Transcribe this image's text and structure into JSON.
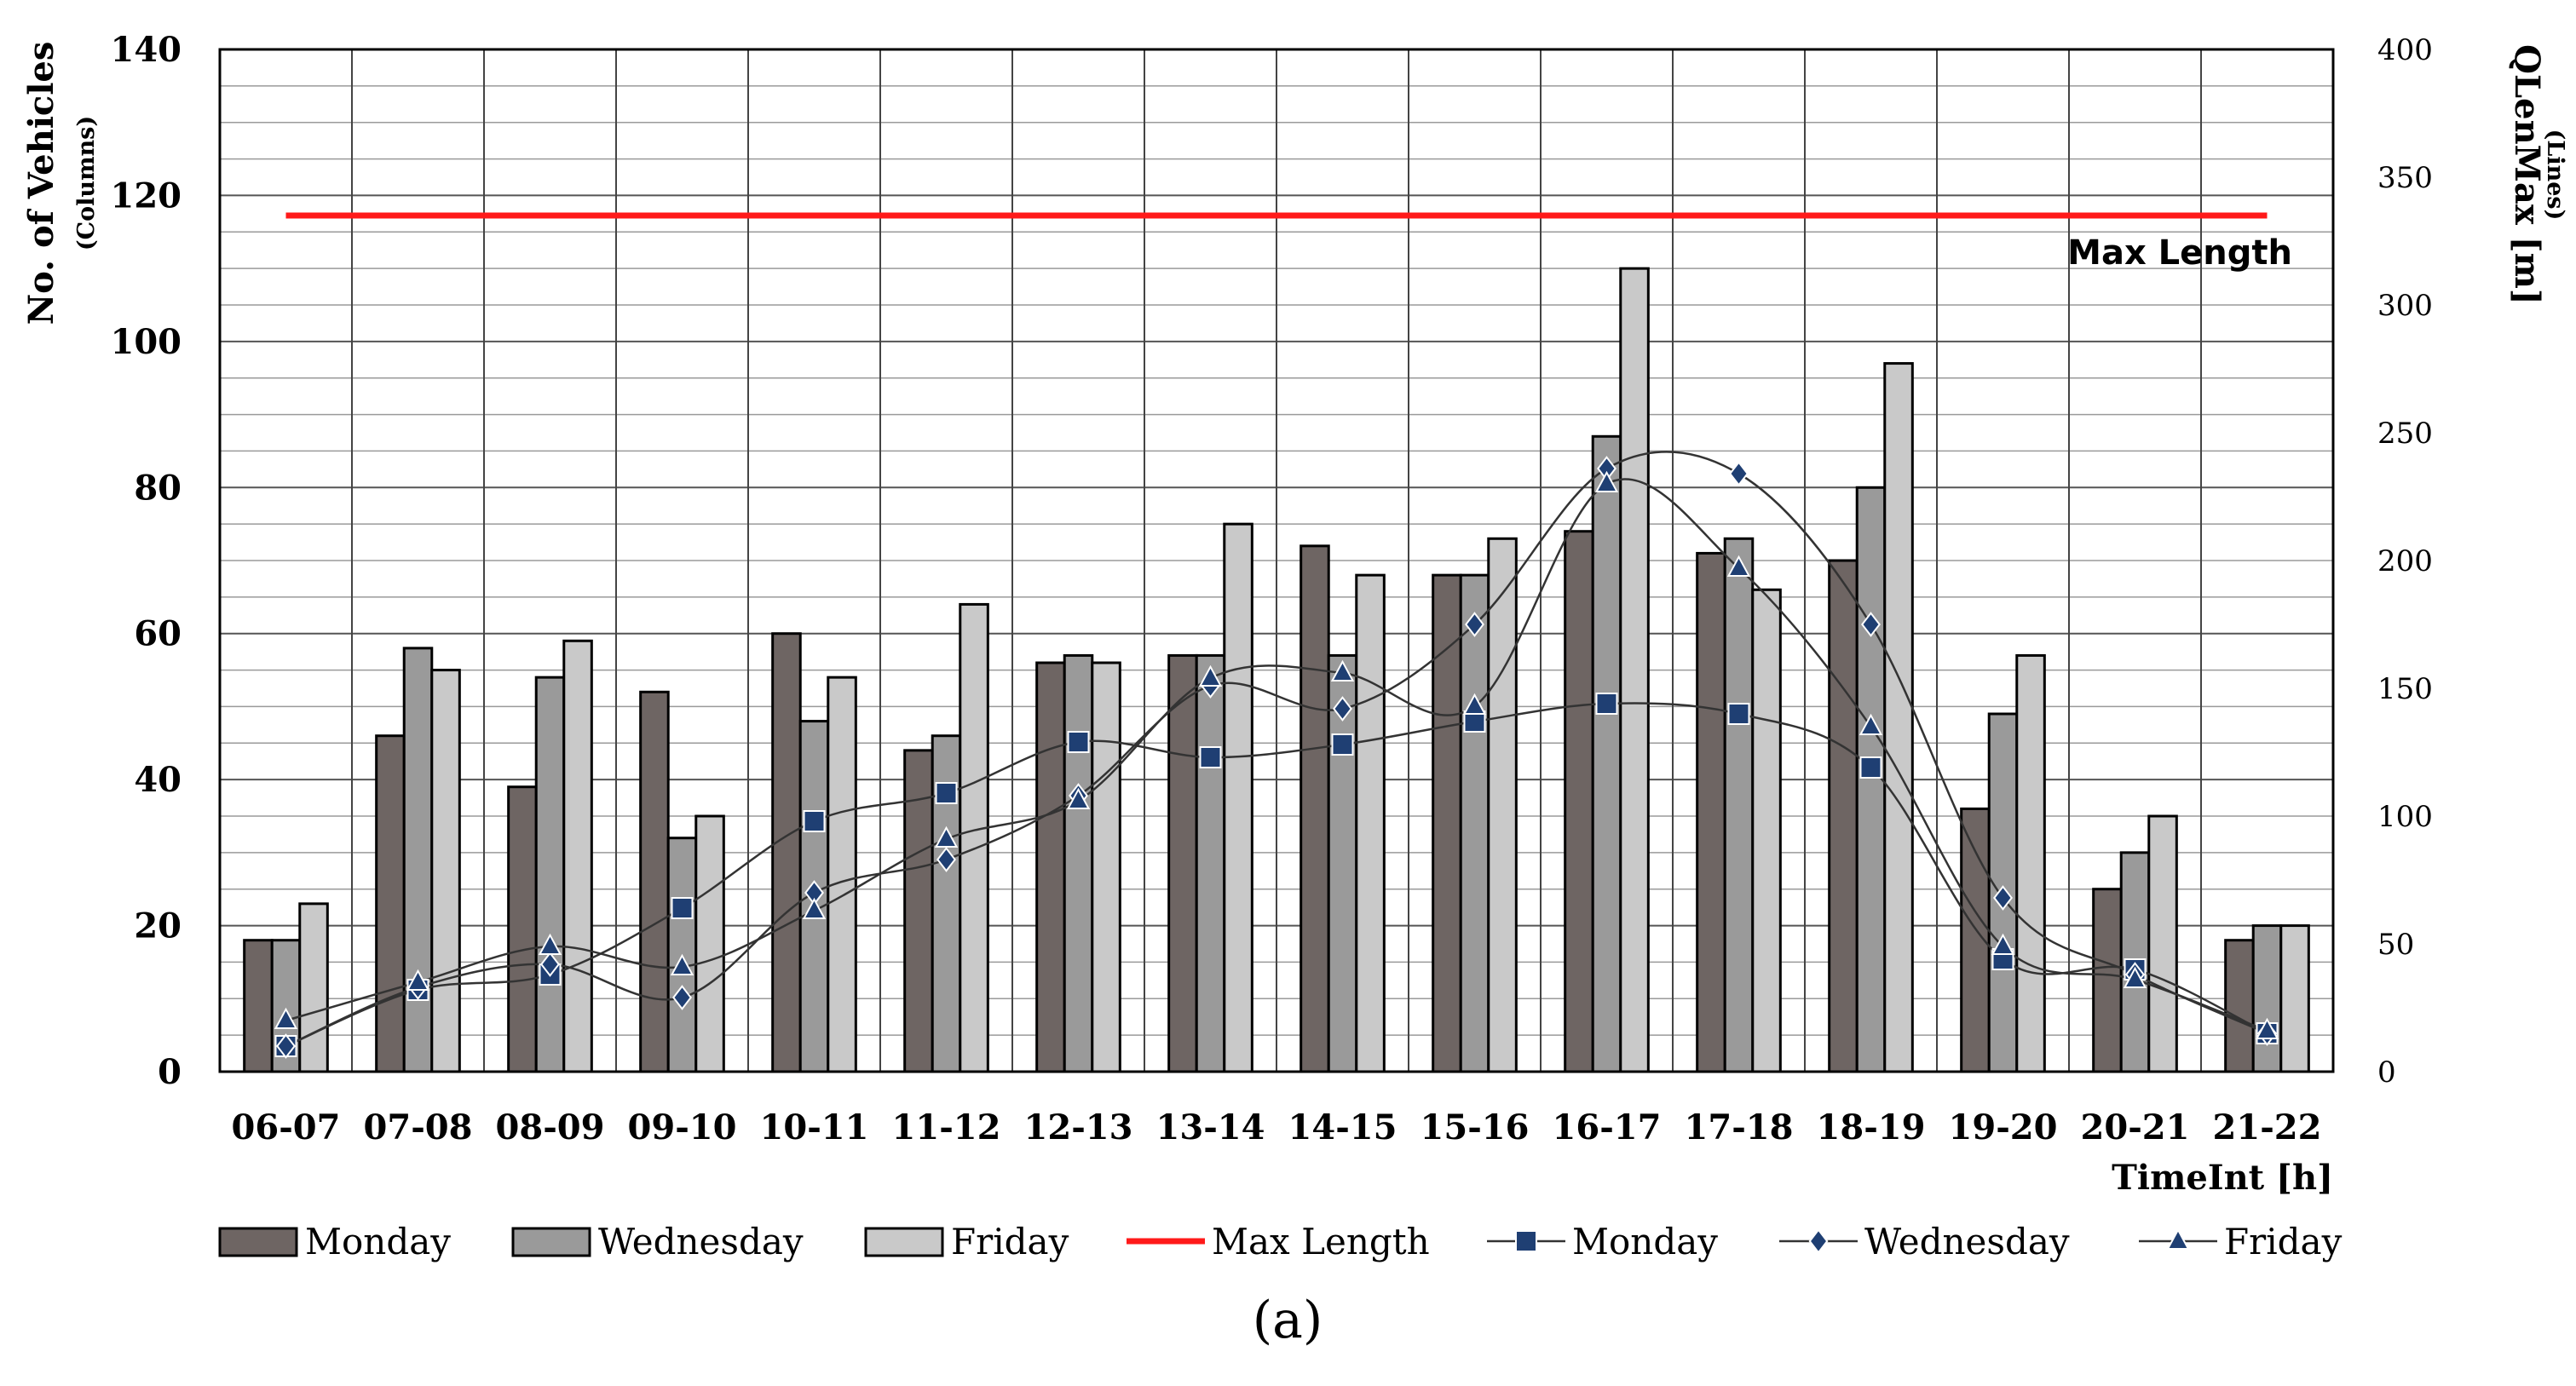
{
  "panel_label": "(a)",
  "chart_data": {
    "type": "bar",
    "x_label": "TimeInt [h]",
    "categories": [
      "06-07",
      "07-08",
      "08-09",
      "09-10",
      "10-11",
      "11-12",
      "12-13",
      "13-14",
      "14-15",
      "15-16",
      "16-17",
      "17-18",
      "18-19",
      "19-20",
      "20-21",
      "21-22"
    ],
    "left_axis": {
      "label": "No. of Vehicles",
      "sublabel": "(Columns)",
      "ylim": [
        0,
        140
      ],
      "ticks": [
        0,
        20,
        40,
        60,
        80,
        100,
        120,
        140
      ]
    },
    "right_axis": {
      "label": "QLenMax [m]",
      "sublabel": "(Lines)",
      "ylim": [
        0,
        400
      ],
      "ticks": [
        0,
        50,
        100,
        150,
        200,
        250,
        300,
        350,
        400
      ]
    },
    "bar_series": [
      {
        "name": "Monday",
        "color": "#6e6563",
        "values": [
          18,
          46,
          39,
          52,
          60,
          44,
          56,
          57,
          72,
          68,
          74,
          71,
          70,
          36,
          25,
          18
        ]
      },
      {
        "name": "Wednesday",
        "color": "#9a9a9a",
        "values": [
          18,
          58,
          54,
          32,
          48,
          46,
          57,
          57,
          57,
          68,
          87,
          73,
          80,
          49,
          30,
          20
        ]
      },
      {
        "name": "Friday",
        "color": "#c9c9c9",
        "values": [
          23,
          55,
          59,
          35,
          54,
          64,
          56,
          75,
          68,
          73,
          110,
          66,
          97,
          57,
          35,
          20
        ]
      }
    ],
    "reference_line": {
      "name": "Max Length",
      "label": "Max Length",
      "value": 335,
      "axis": "right",
      "color": "#ff1a1a"
    },
    "line_series": [
      {
        "name": "Monday",
        "marker": "square",
        "color": "#1f3f73",
        "values": [
          10,
          32,
          38,
          64,
          98,
          109,
          129,
          123,
          128,
          137,
          144,
          140,
          119,
          44,
          40,
          15
        ]
      },
      {
        "name": "Wednesday",
        "marker": "diamond",
        "color": "#1f3f73",
        "values": [
          10,
          33,
          42,
          29,
          70,
          83,
          108,
          151,
          142,
          175,
          236,
          234,
          175,
          68,
          38,
          15
        ]
      },
      {
        "name": "Friday",
        "marker": "triangle",
        "color": "#1f3f73",
        "values": [
          20,
          35,
          49,
          41,
          63,
          91,
          106,
          154,
          156,
          143,
          230,
          197,
          135,
          49,
          36,
          16
        ]
      }
    ],
    "legend": [
      {
        "label": "Monday",
        "kind": "bar",
        "color": "#6e6563"
      },
      {
        "label": "Wednesday",
        "kind": "bar",
        "color": "#9a9a9a"
      },
      {
        "label": "Friday",
        "kind": "bar",
        "color": "#c9c9c9"
      },
      {
        "label": "Max Length",
        "kind": "line",
        "color": "#ff1a1a"
      },
      {
        "label": "Monday",
        "kind": "marker",
        "marker": "square"
      },
      {
        "label": "Wednesday",
        "kind": "marker",
        "marker": "diamond"
      },
      {
        "label": "Friday",
        "kind": "marker",
        "marker": "triangle"
      }
    ]
  }
}
